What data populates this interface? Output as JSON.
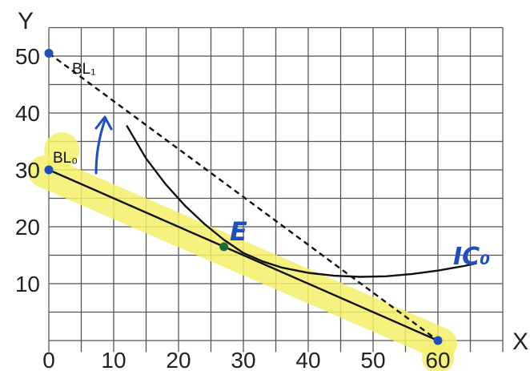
{
  "chart_data": {
    "type": "line",
    "title": "",
    "xlabel": "X",
    "ylabel": "Y",
    "xlim": [
      0,
      70
    ],
    "ylim": [
      -2,
      55
    ],
    "x_ticks": [
      "0",
      "10",
      "20",
      "30",
      "40",
      "50",
      "60"
    ],
    "y_ticks": [
      "10",
      "20",
      "30",
      "40",
      "50"
    ],
    "grid": true,
    "highlight_color": "#f4f06a",
    "series": [
      {
        "name": "BL₀",
        "style": "solid",
        "color": "#111111",
        "x": [
          0,
          60
        ],
        "y": [
          30,
          0
        ]
      },
      {
        "name": "BL₁",
        "style": "dashed",
        "color": "#111111",
        "x": [
          0,
          60
        ],
        "y": [
          50.5,
          0
        ]
      },
      {
        "name": "IC₀",
        "style": "solid",
        "color": "#111111",
        "x": [
          12,
          15,
          18,
          21,
          24,
          27,
          30,
          33,
          36,
          40,
          44,
          48,
          52,
          56,
          60,
          62,
          64,
          66
        ],
        "y": [
          37.8,
          32,
          27.5,
          23.7,
          20.5,
          17.7,
          15.4,
          13.9,
          12.8,
          11.9,
          11.4,
          11.2,
          11.3,
          11.7,
          12.3,
          12.7,
          13.1,
          13.6
        ]
      }
    ],
    "points": [
      {
        "name": "BL₁ intercept",
        "x": 0,
        "y": 50.5,
        "color": "#1f4fbf"
      },
      {
        "name": "BL₀ intercept",
        "x": 0,
        "y": 30,
        "color": "#1f4fbf"
      },
      {
        "name": "E",
        "x": 27,
        "y": 16.5,
        "color": "#1e6b3a"
      },
      {
        "name": "X intercept",
        "x": 60,
        "y": 0,
        "color": "#1f4fbf"
      }
    ],
    "annotations": {
      "bl0": "BL₀",
      "bl1": "BL₁",
      "equilibrium": "E",
      "indifference_curve": "IC₀",
      "arrow": "upward pivot from BL₀ to BL₁"
    }
  }
}
